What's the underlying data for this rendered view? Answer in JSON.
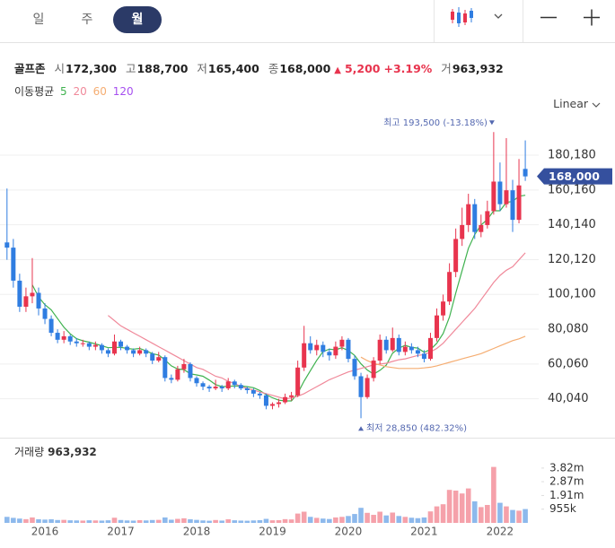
{
  "header": {
    "tabs": [
      "일",
      "주",
      "월"
    ],
    "active_tab": 2
  },
  "quote": {
    "name": "골프존",
    "fields": [
      {
        "label": "시",
        "value": "172,300"
      },
      {
        "label": "고",
        "value": "188,700"
      },
      {
        "label": "저",
        "value": "165,400"
      },
      {
        "label": "종",
        "value": "168,000"
      }
    ],
    "arrow": "▲",
    "change": "5,200",
    "change_pct": "+3.19%",
    "volume_label": "거",
    "volume": "963,932"
  },
  "ma_label": "이동평균",
  "scale_menu": "Linear",
  "chart_data": [
    {
      "type": "candlestick",
      "categories": [
        null,
        null,
        null,
        null,
        null,
        null,
        "2016",
        null,
        null,
        null,
        null,
        null,
        null,
        null,
        null,
        null,
        null,
        null,
        "2017",
        null,
        null,
        null,
        null,
        null,
        null,
        null,
        null,
        null,
        null,
        null,
        "2018",
        null,
        null,
        null,
        null,
        null,
        null,
        null,
        null,
        null,
        null,
        null,
        "2019",
        null,
        null,
        null,
        null,
        null,
        null,
        null,
        null,
        null,
        null,
        null,
        "2020",
        null,
        null,
        null,
        null,
        null,
        null,
        null,
        null,
        null,
        null,
        null,
        "2021",
        null,
        null,
        null,
        null,
        null,
        null,
        null,
        null,
        null,
        null,
        null,
        "2022",
        null,
        null,
        null,
        null
      ],
      "open": [
        130000,
        127000,
        108000,
        93000,
        99000,
        101000,
        92000,
        86000,
        78000,
        74000,
        76000,
        73000,
        72000,
        72000,
        70000,
        71000,
        68000,
        66000,
        73000,
        70000,
        68000,
        66000,
        68000,
        66000,
        62000,
        64000,
        52000,
        51000,
        57000,
        60000,
        52000,
        49000,
        47000,
        46000,
        47000,
        46000,
        50000,
        48000,
        46000,
        45000,
        43000,
        42000,
        36000,
        37000,
        38000,
        41000,
        42000,
        58000,
        72000,
        68000,
        71000,
        67000,
        65000,
        70000,
        74000,
        63000,
        53000,
        41000,
        52000,
        62000,
        74000,
        68000,
        75000,
        67000,
        70000,
        68000,
        66000,
        63000,
        75000,
        88000,
        96000,
        113000,
        132000,
        140000,
        152000,
        136000,
        140000,
        148000,
        165000,
        152000,
        160000,
        143000,
        172300
      ],
      "high": [
        161000,
        132000,
        112000,
        104000,
        121000,
        104000,
        95000,
        88000,
        80000,
        79000,
        77000,
        75000,
        74000,
        73000,
        73000,
        72000,
        69000,
        77000,
        74000,
        71000,
        69000,
        70000,
        69000,
        67000,
        67000,
        65000,
        54000,
        59000,
        63000,
        61000,
        53000,
        50000,
        48000,
        51000,
        48000,
        52000,
        51000,
        49000,
        47000,
        46000,
        44000,
        43000,
        38000,
        40000,
        43000,
        44000,
        62000,
        82000,
        76000,
        74000,
        73000,
        69000,
        73000,
        76000,
        75000,
        65000,
        55000,
        54000,
        64000,
        77000,
        76000,
        81000,
        77000,
        73000,
        72000,
        70000,
        68000,
        78000,
        92000,
        100000,
        118000,
        138000,
        150000,
        158000,
        155000,
        146000,
        154000,
        193500,
        176000,
        190000,
        166000,
        178000,
        188700
      ],
      "low": [
        120000,
        104000,
        90000,
        90000,
        95000,
        88000,
        83000,
        76000,
        72000,
        72000,
        71000,
        70000,
        70000,
        68000,
        68000,
        66000,
        64000,
        65000,
        68000,
        66000,
        64000,
        65000,
        64000,
        60000,
        61000,
        50000,
        49000,
        50000,
        55000,
        50000,
        47000,
        45000,
        44000,
        45000,
        44000,
        45000,
        46000,
        45000,
        43000,
        41000,
        40000,
        34000,
        34000,
        35000,
        37000,
        39000,
        41000,
        56000,
        66000,
        65000,
        64000,
        62000,
        63000,
        68000,
        61000,
        51000,
        28850,
        40000,
        50000,
        60000,
        66000,
        67000,
        65000,
        65000,
        66000,
        64000,
        61000,
        62000,
        73000,
        85000,
        94000,
        110000,
        128000,
        136000,
        132000,
        133000,
        138000,
        146000,
        148000,
        150000,
        136000,
        141000,
        165400
      ],
      "close": [
        127000,
        108000,
        93000,
        99000,
        101000,
        92000,
        86000,
        78000,
        74000,
        76000,
        73000,
        72000,
        72000,
        70000,
        71000,
        68000,
        66000,
        73000,
        70000,
        68000,
        66000,
        68000,
        66000,
        62000,
        64000,
        52000,
        51000,
        57000,
        60000,
        52000,
        49000,
        47000,
        46000,
        47000,
        46000,
        50000,
        48000,
        46000,
        45000,
        43000,
        42000,
        36000,
        37000,
        38000,
        41000,
        42000,
        58000,
        72000,
        68000,
        71000,
        67000,
        65000,
        70000,
        74000,
        63000,
        53000,
        41000,
        52000,
        62000,
        74000,
        68000,
        75000,
        67000,
        70000,
        68000,
        66000,
        63000,
        75000,
        88000,
        96000,
        113000,
        132000,
        140000,
        152000,
        136000,
        140000,
        148000,
        165000,
        152000,
        160000,
        143000,
        162800,
        168000
      ],
      "up_color": "#e8344e",
      "down_color": "#2f7de1",
      "series": [
        {
          "name": 5,
          "color": "#3fb24f",
          "values": [
            null,
            null,
            null,
            null,
            105600,
            98600,
            94200,
            91200,
            86200,
            81200,
            77400,
            74600,
            73400,
            72600,
            71600,
            70600,
            69400,
            69600,
            69600,
            69000,
            68600,
            69000,
            67600,
            66000,
            65200,
            62400,
            59000,
            57200,
            56800,
            54400,
            53800,
            53000,
            50800,
            48200,
            47000,
            47200,
            47400,
            47400,
            47000,
            46400,
            44800,
            42400,
            40600,
            39200,
            38800,
            38800,
            43200,
            50200,
            56200,
            62200,
            67200,
            68600,
            68200,
            69400,
            67800,
            65000,
            60200,
            56600,
            54200,
            56400,
            59400,
            66200,
            69200,
            70800,
            69600,
            69200,
            66800,
            68400,
            72000,
            77600,
            87000,
            100800,
            113800,
            126600,
            134600,
            140000,
            143200,
            148200,
            148200,
            153000,
            153600,
            156560,
            157160
          ]
        },
        {
          "name": 20,
          "color": "#f0899a",
          "values": [
            null,
            null,
            null,
            null,
            null,
            null,
            null,
            null,
            null,
            null,
            null,
            null,
            null,
            null,
            null,
            null,
            88000,
            85000,
            82000,
            80000,
            78000,
            76000,
            74000,
            72000,
            70000,
            68000,
            66000,
            64000,
            62000,
            60000,
            58000,
            57000,
            55000,
            53000,
            52000,
            50000,
            49000,
            47000,
            46000,
            45000,
            44000,
            43000,
            42000,
            41000,
            40000,
            40500,
            41500,
            43000,
            45000,
            47000,
            49000,
            51000,
            52500,
            54000,
            55500,
            56500,
            57500,
            58500,
            59500,
            60000,
            60500,
            61500,
            62500,
            63000,
            64000,
            65000,
            65500,
            67000,
            69000,
            72000,
            76000,
            80000,
            84000,
            88000,
            92000,
            97000,
            102000,
            107000,
            111000,
            114000,
            116000,
            120000,
            124000
          ]
        },
        {
          "name": 60,
          "color": "#f5ad72",
          "values": [
            null,
            null,
            null,
            null,
            null,
            null,
            null,
            null,
            null,
            null,
            null,
            null,
            null,
            null,
            null,
            null,
            null,
            null,
            null,
            null,
            null,
            null,
            null,
            null,
            null,
            null,
            null,
            null,
            null,
            null,
            null,
            null,
            null,
            null,
            null,
            null,
            null,
            null,
            null,
            null,
            null,
            null,
            null,
            null,
            null,
            null,
            null,
            null,
            null,
            null,
            null,
            null,
            null,
            null,
            null,
            null,
            64000,
            62000,
            60500,
            59500,
            58500,
            58000,
            57500,
            57500,
            57500,
            57500,
            57800,
            58200,
            59000,
            60000,
            61000,
            62000,
            63000,
            64000,
            65000,
            66000,
            67500,
            69000,
            70500,
            72000,
            73500,
            74500,
            76000
          ]
        },
        {
          "name": 120,
          "color": "#a64ff0",
          "values": [
            null,
            null,
            null,
            null,
            null,
            null,
            null,
            null,
            null,
            null,
            null,
            null,
            null,
            null,
            null,
            null,
            null,
            null,
            null,
            null,
            null,
            null,
            null,
            null,
            null,
            null,
            null,
            null,
            null,
            null,
            null,
            null,
            null,
            null,
            null,
            null,
            null,
            null,
            null,
            null,
            null,
            null,
            null,
            null,
            null,
            null,
            null,
            null,
            null,
            null,
            null,
            null,
            null,
            null,
            null,
            null,
            null,
            null,
            null,
            null,
            null,
            null,
            null,
            null,
            null,
            null,
            null,
            null,
            null,
            null,
            null,
            null,
            null,
            null,
            null,
            null,
            null,
            null,
            null,
            null,
            null,
            null,
            null
          ]
        }
      ],
      "ylim": [
        19200,
        202400
      ],
      "yticks": [
        {
          "value": 40040,
          "label": "40,040"
        },
        {
          "value": 60060,
          "label": "60,060"
        },
        {
          "value": 80080,
          "label": "80,080"
        },
        {
          "value": 100100,
          "label": "100,100"
        },
        {
          "value": 120120,
          "label": "120,120"
        },
        {
          "value": 140140,
          "label": "140,140"
        },
        {
          "value": 160160,
          "label": "160,160"
        },
        {
          "value": 180180,
          "label": "180,180"
        }
      ],
      "grid": true,
      "high_annotation": "최고 193,500 (-13.18%)",
      "low_annotation": "최저 28,850 (482.32%)",
      "price_tag": "168,000"
    },
    {
      "type": "bar",
      "title": "거래량",
      "subtitle": "963,932",
      "values": [
        420000,
        350000,
        300000,
        260000,
        380000,
        250000,
        230000,
        250000,
        200000,
        210000,
        180000,
        170000,
        160000,
        180000,
        170000,
        160000,
        180000,
        360000,
        200000,
        170000,
        160000,
        190000,
        170000,
        200000,
        210000,
        380000,
        220000,
        280000,
        320000,
        250000,
        210000,
        170000,
        150000,
        200000,
        160000,
        250000,
        180000,
        160000,
        150000,
        170000,
        190000,
        280000,
        180000,
        190000,
        260000,
        240000,
        650000,
        780000,
        420000,
        350000,
        300000,
        270000,
        380000,
        420000,
        480000,
        620000,
        1050000,
        700000,
        560000,
        780000,
        520000,
        720000,
        480000,
        420000,
        360000,
        330000,
        380000,
        800000,
        1150000,
        1300000,
        2300000,
        2250000,
        2050000,
        2400000,
        1500000,
        1100000,
        1250000,
        3900000,
        1400000,
        1150000,
        900000,
        850000,
        963932
      ],
      "up_color": "#f5a1aa",
      "down_color": "#8db9ec",
      "ylim": [
        0,
        5500000
      ],
      "yticks": [
        {
          "value": 955000,
          "label": "955k"
        },
        {
          "value": 1910000,
          "label": "1.91m"
        },
        {
          "value": 2870000,
          "label": "2.87m"
        },
        {
          "value": 3820000,
          "label": "3.82m"
        }
      ],
      "grid": false
    }
  ]
}
